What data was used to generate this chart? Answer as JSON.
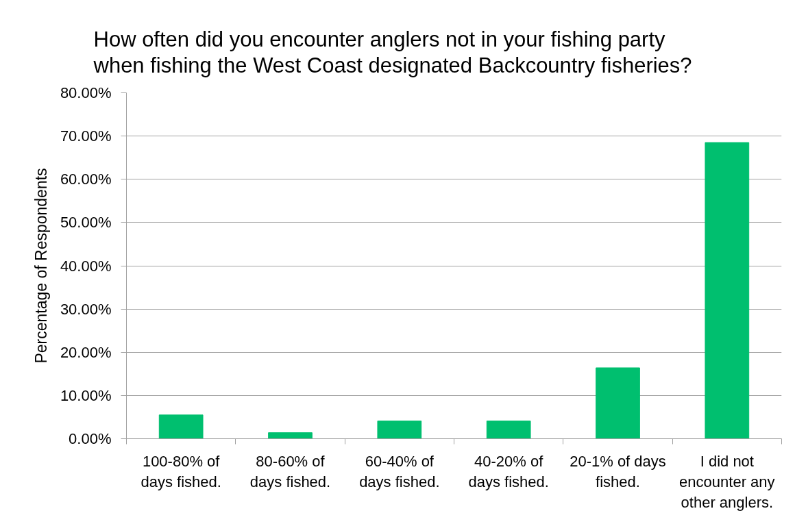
{
  "chart_data": {
    "type": "bar",
    "title": "How often did you encounter anglers not in your fishing party when fishing the West Coast designated Backcountry fisheries?",
    "ylabel": "Percentage of Respondents",
    "categories": [
      "100-80% of days fished.",
      "80-60% of days fished.",
      "60-40% of days fished.",
      "40-20% of days fished.",
      "20-1% of days fished.",
      "I did not encounter any other anglers."
    ],
    "values": [
      5.5,
      1.4,
      4.1,
      4.1,
      16.4,
      68.5
    ],
    "color": "#00bf6f",
    "ylim": [
      0,
      80
    ],
    "yticks": [
      {
        "value": 0,
        "label": "0.00%"
      },
      {
        "value": 10,
        "label": "10.00%"
      },
      {
        "value": 20,
        "label": "20.00%"
      },
      {
        "value": 30,
        "label": "30.00%"
      },
      {
        "value": 40,
        "label": "40.00%"
      },
      {
        "value": 50,
        "label": "50.00%"
      },
      {
        "value": 60,
        "label": "60.00%"
      },
      {
        "value": 70,
        "label": "70.00%"
      },
      {
        "value": 80,
        "label": "80.00%"
      }
    ],
    "grid": "y"
  }
}
